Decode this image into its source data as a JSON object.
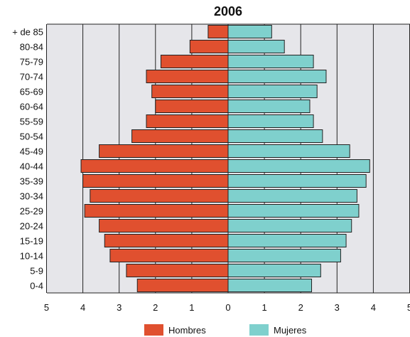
{
  "chart_data": {
    "type": "bar",
    "title": "2006",
    "xlim": [
      -5,
      5
    ],
    "x_ticks": [
      "5",
      "4",
      "3",
      "2",
      "1",
      "0",
      "1",
      "2",
      "3",
      "4",
      "5"
    ],
    "grid": true,
    "legend_position": "bottom-center",
    "categories": [
      "+ de 85",
      "80-84",
      "75-79",
      "70-74",
      "65-69",
      "60-64",
      "55-59",
      "50-54",
      "45-49",
      "40-44",
      "35-39",
      "30-34",
      "25-29",
      "20-24",
      "15-19",
      "10-14",
      "5-9",
      "0-4"
    ],
    "series": [
      {
        "name": "Hombres",
        "color": "#e0502f",
        "values": [
          0.55,
          1.05,
          1.85,
          2.25,
          2.1,
          2.0,
          2.25,
          2.65,
          3.55,
          4.05,
          4.0,
          3.8,
          3.95,
          3.55,
          3.4,
          3.25,
          2.8,
          2.5
        ]
      },
      {
        "name": "Mujeres",
        "color": "#7fd0cd",
        "values": [
          1.2,
          1.55,
          2.35,
          2.7,
          2.45,
          2.25,
          2.35,
          2.6,
          3.35,
          3.9,
          3.8,
          3.55,
          3.6,
          3.4,
          3.25,
          3.1,
          2.55,
          2.3
        ]
      }
    ]
  }
}
